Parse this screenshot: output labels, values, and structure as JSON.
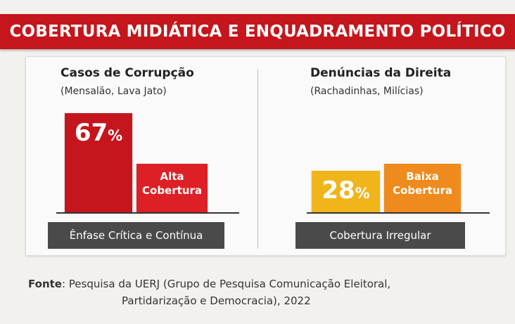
{
  "title": "COBERTURA MIDIÁTICA E ENQUADRAMENTO POLÍTICO",
  "chart_data": [
    {
      "type": "bar",
      "title": "Casos de Corrupção",
      "subtitle": "(Mensalão, Lava Jato)",
      "categories": [
        "67%",
        "Alta Cobertura"
      ],
      "values": [
        67,
        33
      ],
      "value_label": "67",
      "percent_sign": "%",
      "secondary_label_lines": [
        "Alta",
        "Cobertura"
      ],
      "footer": "Ênfase Crítica e Contínua",
      "colors": [
        "#c4161c",
        "#dc2026"
      ]
    },
    {
      "type": "bar",
      "title": "Denúncias da Direita",
      "subtitle": "(Rachadinhas, Milícias)",
      "categories": [
        "28%",
        "Baixa Cobertura"
      ],
      "values": [
        28,
        33
      ],
      "value_label": "28",
      "percent_sign": "%",
      "secondary_label_lines": [
        "Baixa",
        "Cobertura"
      ],
      "footer": "Cobertura Irregular",
      "colors": [
        "#f1b51c",
        "#ef8a1c"
      ]
    }
  ],
  "source": {
    "label": "Fonte",
    "line1": ": Pesquisa da UERJ (Grupo de Pesquisa Comunicação Eleitoral,",
    "line2": "Partidarização e Democracia), 2022"
  }
}
